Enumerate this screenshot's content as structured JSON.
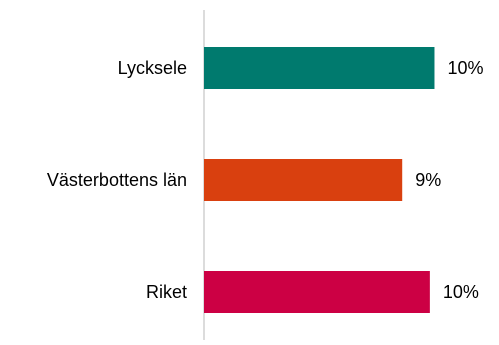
{
  "chart_data": {
    "type": "bar",
    "orientation": "horizontal",
    "categories": [
      "Lycksele",
      "Västerbottens län",
      "Riket"
    ],
    "values": [
      10.0,
      8.6,
      9.8
    ],
    "value_labels": [
      "10%",
      "9%",
      "10%"
    ],
    "colors": [
      "#007a6e",
      "#d9400f",
      "#cc0044"
    ],
    "axis_color": "#d0d0d0",
    "xlim": [
      0,
      10.5
    ],
    "title": "",
    "xlabel": "",
    "ylabel": "",
    "grid": false,
    "legend": "none"
  }
}
